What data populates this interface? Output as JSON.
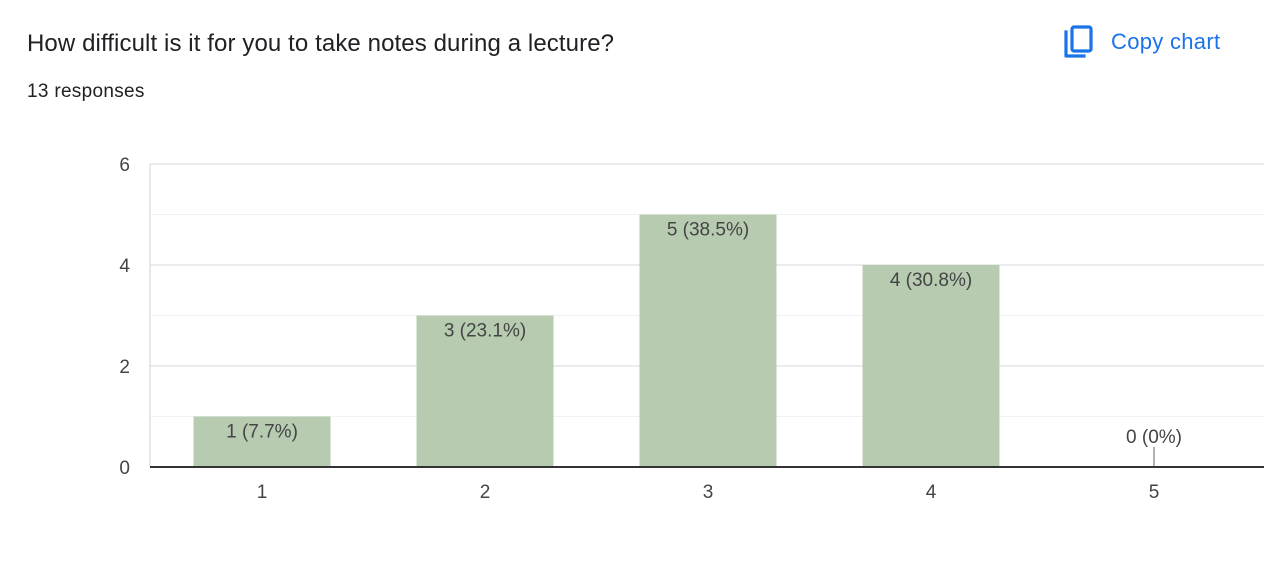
{
  "question": "How difficult is it for you to take notes during a lecture?",
  "responses_label": "13 responses",
  "copy_button": {
    "label": "Copy chart",
    "icon": "copy-icon"
  },
  "colors": {
    "bar": "#b7cbb1",
    "accent": "#1a73e8",
    "grid": "#e6e6e6",
    "axis": "#333333"
  },
  "chart_data": {
    "type": "bar",
    "title": "",
    "xlabel": "",
    "ylabel": "",
    "categories": [
      "1",
      "2",
      "3",
      "4",
      "5"
    ],
    "values": [
      1,
      3,
      5,
      4,
      0
    ],
    "data_labels": [
      "1 (7.7%)",
      "3 (23.1%)",
      "5 (38.5%)",
      "4 (30.8%)",
      "0 (0%)"
    ],
    "ylim": [
      0,
      6
    ],
    "y_ticks": [
      "0",
      "2",
      "4",
      "6"
    ],
    "grid": true,
    "legend": "none"
  }
}
